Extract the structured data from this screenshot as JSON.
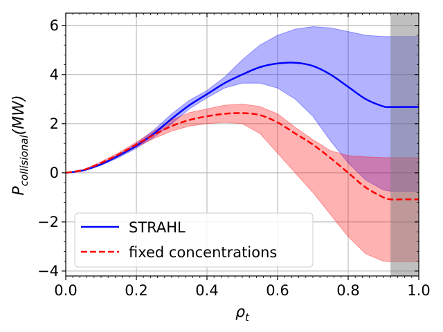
{
  "chart_data": {
    "type": "line",
    "title": "",
    "xlabel": "ρ",
    "xlabel_sub": "t",
    "ylabel": "P",
    "ylabel_sub": "collisional",
    "ylabel_suffix": "(MW)",
    "xlim": [
      0.0,
      1.0
    ],
    "ylim": [
      -4.2,
      6.5
    ],
    "grid": true,
    "legend_position": "lower-left",
    "x_ticks": [
      0.0,
      0.2,
      0.4,
      0.6,
      0.8,
      1.0
    ],
    "x_tick_labels": [
      "0.0",
      "0.2",
      "0.4",
      "0.6",
      "0.8",
      "1.0"
    ],
    "y_ticks": [
      -4,
      -2,
      0,
      2,
      4,
      6
    ],
    "y_tick_labels": [
      "−4",
      "−2",
      "0",
      "2",
      "4",
      "6"
    ],
    "shaded_region": {
      "x_start": 0.92,
      "x_end": 1.0,
      "color": "#808080"
    },
    "series": [
      {
        "name": "STRAHL",
        "color": "#0000ff",
        "style": "solid",
        "x": [
          0.0,
          0.05,
          0.1,
          0.15,
          0.2,
          0.25,
          0.3,
          0.35,
          0.4,
          0.45,
          0.5,
          0.55,
          0.6,
          0.65,
          0.7,
          0.75,
          0.8,
          0.85,
          0.9,
          0.92,
          0.95,
          1.0
        ],
        "y": [
          0.0,
          0.1,
          0.35,
          0.7,
          1.1,
          1.6,
          2.2,
          2.75,
          3.2,
          3.65,
          4.0,
          4.3,
          4.45,
          4.48,
          4.35,
          4.0,
          3.5,
          3.0,
          2.7,
          2.68,
          2.68,
          2.68
        ],
        "band_upper": [
          0.0,
          0.1,
          0.38,
          0.75,
          1.2,
          1.75,
          2.4,
          2.95,
          3.35,
          3.9,
          4.6,
          5.2,
          5.6,
          5.85,
          5.95,
          5.9,
          5.75,
          5.6,
          5.55,
          5.55,
          5.55,
          5.55
        ],
        "band_lower": [
          0.0,
          0.08,
          0.3,
          0.62,
          1.0,
          1.45,
          2.0,
          2.6,
          3.05,
          3.45,
          3.65,
          3.65,
          3.45,
          3.0,
          2.3,
          1.3,
          0.4,
          -0.3,
          -0.7,
          -0.75,
          -0.75,
          -0.75
        ]
      },
      {
        "name": "fixed concentrations",
        "color": "#ff0000",
        "style": "dashed",
        "x": [
          0.0,
          0.05,
          0.1,
          0.15,
          0.2,
          0.25,
          0.3,
          0.35,
          0.4,
          0.45,
          0.5,
          0.55,
          0.6,
          0.65,
          0.7,
          0.75,
          0.8,
          0.85,
          0.9,
          0.92,
          0.95,
          1.0
        ],
        "y": [
          0.0,
          0.12,
          0.4,
          0.75,
          1.15,
          1.55,
          1.9,
          2.15,
          2.3,
          2.4,
          2.43,
          2.35,
          2.05,
          1.6,
          1.15,
          0.6,
          0.0,
          -0.6,
          -1.0,
          -1.08,
          -1.08,
          -1.08
        ],
        "band_upper": [
          0.0,
          0.13,
          0.45,
          0.82,
          1.25,
          1.7,
          2.15,
          2.45,
          2.6,
          2.75,
          2.8,
          2.7,
          2.4,
          1.85,
          1.35,
          0.9,
          0.7,
          0.65,
          0.62,
          0.62,
          0.62,
          0.62
        ],
        "band_lower": [
          0.0,
          0.1,
          0.35,
          0.68,
          1.05,
          1.4,
          1.7,
          1.9,
          2.0,
          2.05,
          2.0,
          1.6,
          0.8,
          0.0,
          -0.8,
          -1.7,
          -2.6,
          -3.3,
          -3.6,
          -3.62,
          -3.62,
          -3.62
        ]
      }
    ]
  }
}
